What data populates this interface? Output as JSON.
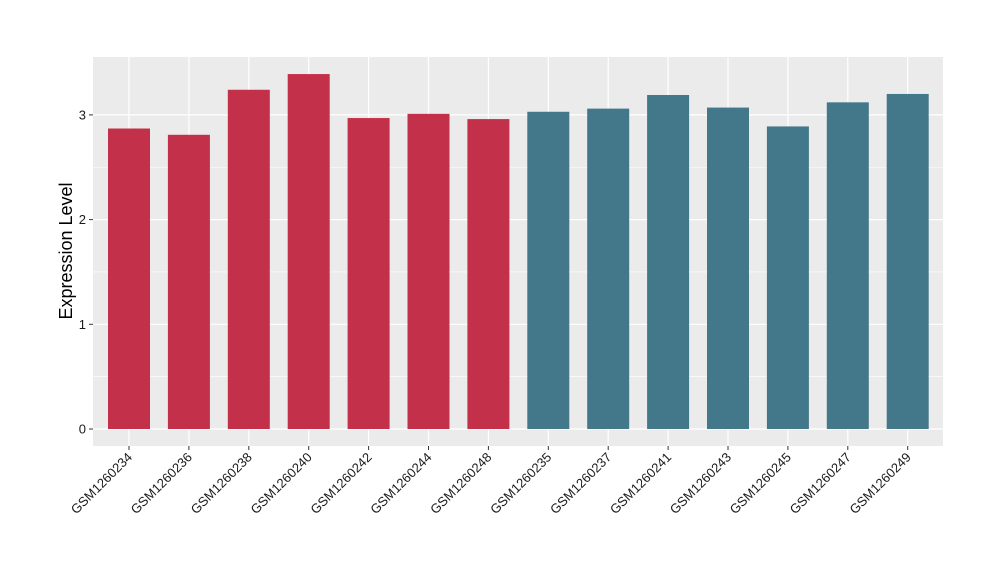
{
  "chart_data": {
    "type": "bar",
    "ylabel": "Expression Level",
    "xlabel": "",
    "ylim": [
      0,
      3.45
    ],
    "yticks": [
      0,
      1,
      2,
      3
    ],
    "grid": true,
    "categories": [
      "GSM1260234",
      "GSM1260236",
      "GSM1260238",
      "GSM1260240",
      "GSM1260242",
      "GSM1260244",
      "GSM1260248",
      "GSM1260235",
      "GSM1260237",
      "GSM1260241",
      "GSM1260243",
      "GSM1260245",
      "GSM1260247",
      "GSM1260249"
    ],
    "values": [
      2.87,
      2.81,
      3.24,
      3.39,
      2.97,
      3.01,
      2.96,
      3.03,
      3.06,
      3.19,
      3.07,
      2.89,
      3.12,
      3.2
    ],
    "colors": [
      "#c3304a",
      "#c3304a",
      "#c3304a",
      "#c3304a",
      "#c3304a",
      "#c3304a",
      "#c3304a",
      "#43788a",
      "#43788a",
      "#43788a",
      "#43788a",
      "#43788a",
      "#43788a",
      "#43788a"
    ],
    "panel_background": "#ebebeb",
    "gridline_color": "#ffffff"
  }
}
